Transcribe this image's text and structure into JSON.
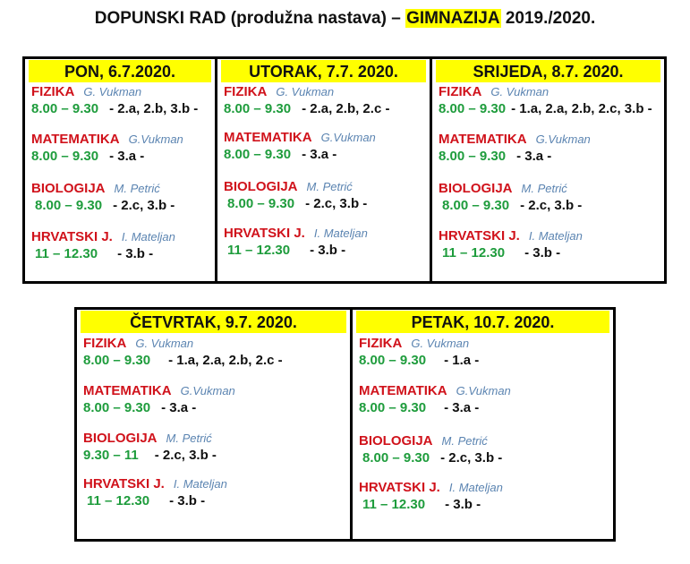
{
  "title": {
    "prefix": "DOPUNSKI RAD (produžna nastava) – ",
    "highlight": "GIMNAZIJA",
    "suffix": " 2019./2020."
  },
  "colors": {
    "header_bg": "#ffff00",
    "subject": "#d0121b",
    "teacher": "#5b84b1",
    "time": "#1e9c3c"
  },
  "days": [
    {
      "heading": "PON, 6.7.2020.",
      "subjects": [
        {
          "name": "FIZIKA",
          "teacher": "G. Vukman",
          "time": "8.00 – 9.30",
          "classes": "- 2.a, 2.b, 3.b -"
        },
        {
          "name": "MATEMATIKA",
          "teacher": "G.Vukman",
          "time": "8.00 – 9.30",
          "classes": "- 3.a -"
        },
        {
          "name": "BIOLOGIJA",
          "teacher": "M. Petrić",
          "time": "8.00 – 9.30",
          "classes": "- 2.c, 3.b -"
        },
        {
          "name": "HRVATSKI J.",
          "teacher": "I. Mateljan",
          "time": "11 – 12.30",
          "classes": "- 3.b -"
        }
      ]
    },
    {
      "heading": "UTORAK, 7.7. 2020.",
      "subjects": [
        {
          "name": "FIZIKA",
          "teacher": "G. Vukman",
          "time": "8.00 – 9.30",
          "classes": "- 2.a, 2.b, 2.c -"
        },
        {
          "name": "MATEMATIKA",
          "teacher": "G.Vukman",
          "time": "8.00 – 9.30",
          "classes": "- 3.a -"
        },
        {
          "name": "BIOLOGIJA",
          "teacher": "M. Petrić",
          "time": "8.00 – 9.30",
          "classes": "- 2.c, 3.b -"
        },
        {
          "name": "HRVATSKI J.",
          "teacher": "I. Mateljan",
          "time": "11 – 12.30",
          "classes": "- 3.b -"
        }
      ]
    },
    {
      "heading": "SRIJEDA, 8.7. 2020.",
      "subjects": [
        {
          "name": "FIZIKA",
          "teacher": "G. Vukman",
          "time": "8.00 – 9.30",
          "classes": "- 1.a, 2.a, 2.b, 2.c, 3.b -"
        },
        {
          "name": "MATEMATIKA",
          "teacher": "G.Vukman",
          "time": "8.00 – 9.30",
          "classes": "- 3.a -"
        },
        {
          "name": "BIOLOGIJA",
          "teacher": "M. Petrić",
          "time": "8.00 – 9.30",
          "classes": "- 2.c, 3.b -"
        },
        {
          "name": "HRVATSKI J.",
          "teacher": "I. Mateljan",
          "time": "11 – 12.30",
          "classes": "- 3.b -"
        }
      ]
    },
    {
      "heading": "ČETVRTAK, 9.7. 2020.",
      "subjects": [
        {
          "name": "FIZIKA",
          "teacher": "G. Vukman",
          "time": "8.00 – 9.30",
          "classes": "- 1.a, 2.a, 2.b, 2.c -"
        },
        {
          "name": "MATEMATIKA",
          "teacher": "G.Vukman",
          "time": "8.00 – 9.30",
          "classes": "- 3.a -"
        },
        {
          "name": "BIOLOGIJA",
          "teacher": "M. Petrić",
          "time": "9.30 – 11",
          "classes": "- 2.c, 3.b -"
        },
        {
          "name": "HRVATSKI J.",
          "teacher": "I. Mateljan",
          "time": "11 – 12.30",
          "classes": "- 3.b -"
        }
      ]
    },
    {
      "heading": "PETAK, 10.7. 2020.",
      "subjects": [
        {
          "name": "FIZIKA",
          "teacher": "G. Vukman",
          "time": "8.00 – 9.30",
          "classes": "- 1.a -"
        },
        {
          "name": "MATEMATIKA",
          "teacher": "G.Vukman",
          "time": "8.00 – 9.30",
          "classes": "- 3.a -"
        },
        {
          "name": "BIOLOGIJA",
          "teacher": "M. Petrić",
          "time": "8.00 – 9.30",
          "classes": "- 2.c, 3.b -"
        },
        {
          "name": "HRVATSKI J.",
          "teacher": "I. Mateljan",
          "time": "11 – 12.30",
          "classes": "- 3.b -"
        }
      ]
    }
  ]
}
